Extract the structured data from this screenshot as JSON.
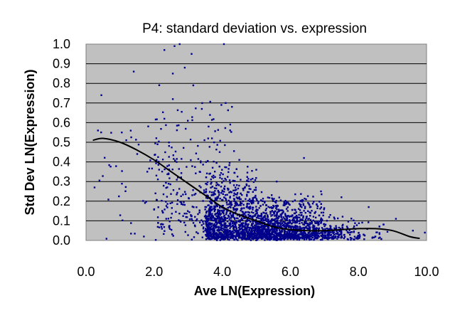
{
  "chart_data": {
    "type": "scatter",
    "title": "P4: standard deviation vs. expression",
    "xlabel": "Ave LN(Expression)",
    "ylabel": "Std Dev LN(Expression)",
    "xlim": [
      0,
      10
    ],
    "ylim": [
      0,
      1
    ],
    "x_ticks": [
      "0.0",
      "2.0",
      "4.0",
      "6.0",
      "8.0",
      "10.0"
    ],
    "y_ticks": [
      "0.0",
      "0.1",
      "0.2",
      "0.3",
      "0.4",
      "0.5",
      "0.6",
      "0.7",
      "0.8",
      "0.9",
      "1.0"
    ],
    "grid": "horizontal",
    "plot_background": "#c0c0c0",
    "point_color": "#00008b",
    "trend_color": "#000000",
    "sample_points": [
      [
        0.25,
        0.27
      ],
      [
        0.35,
        0.56
      ],
      [
        0.45,
        0.74
      ],
      [
        1.05,
        0.55
      ],
      [
        1.4,
        0.86
      ],
      [
        1.8,
        0.35
      ],
      [
        1.7,
        0.02
      ],
      [
        2.1,
        0.49
      ],
      [
        2.3,
        0.62
      ],
      [
        2.55,
        0.72
      ],
      [
        2.55,
        0.85
      ],
      [
        2.9,
        0.88
      ],
      [
        2.6,
        0.99
      ],
      [
        2.75,
        1.0
      ],
      [
        2.3,
        0.97
      ],
      [
        3.15,
        0.79
      ],
      [
        3.4,
        0.67
      ],
      [
        3.6,
        0.58
      ],
      [
        4.05,
        1.0
      ],
      [
        4.1,
        0.7
      ],
      [
        3.1,
        0.95
      ],
      [
        3.7,
        0.52
      ],
      [
        4.5,
        0.41
      ],
      [
        5.0,
        0.36
      ],
      [
        5.6,
        0.3
      ],
      [
        6.4,
        0.42
      ],
      [
        6.9,
        0.25
      ],
      [
        7.5,
        0.22
      ],
      [
        8.3,
        0.17
      ],
      [
        9.1,
        0.11
      ],
      [
        9.6,
        0.05
      ],
      [
        9.95,
        0.04
      ]
    ],
    "trend_line": {
      "x": [
        0.2,
        0.5,
        1.0,
        1.5,
        2.0,
        2.5,
        3.0,
        3.5,
        4.0,
        4.5,
        5.0,
        5.5,
        6.0,
        6.5,
        7.0,
        7.5,
        8.0,
        8.5,
        9.0,
        9.5,
        9.8
      ],
      "y": [
        0.51,
        0.52,
        0.5,
        0.46,
        0.41,
        0.35,
        0.29,
        0.23,
        0.17,
        0.13,
        0.1,
        0.07,
        0.055,
        0.05,
        0.05,
        0.055,
        0.06,
        0.06,
        0.05,
        0.02,
        0.01
      ]
    }
  }
}
